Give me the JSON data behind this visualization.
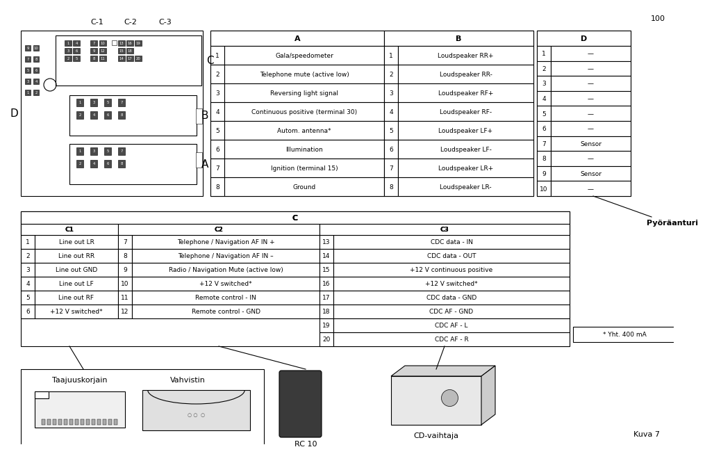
{
  "bg_color": "#ffffff",
  "page_num": "100",
  "connector_labels_C": [
    "C-1",
    "C-2",
    "C-3"
  ],
  "table_A_header": "A",
  "table_A_rows": [
    [
      "1",
      "Gala/speedometer"
    ],
    [
      "2",
      "Telephone mute (active low)"
    ],
    [
      "3",
      "Reversing light signal"
    ],
    [
      "4",
      "Continuous positive (terminal 30)"
    ],
    [
      "5",
      "Autom. antenna*"
    ],
    [
      "6",
      "Illumination"
    ],
    [
      "7",
      "Ignition (terminal 15)"
    ],
    [
      "8",
      "Ground"
    ]
  ],
  "table_B_header": "B",
  "table_B_rows": [
    [
      "1",
      "Loudspeaker RR+"
    ],
    [
      "2",
      "Loudspeaker RR-"
    ],
    [
      "3",
      "Loudspeaker RF+"
    ],
    [
      "4",
      "Loudspeaker RF-"
    ],
    [
      "5",
      "Loudspeaker LF+"
    ],
    [
      "6",
      "Loudspeaker LF-"
    ],
    [
      "7",
      "Loudspeaker LR+"
    ],
    [
      "8",
      "Loudspeaker LR-"
    ]
  ],
  "table_D_header": "D",
  "table_D_rows": [
    [
      "1",
      "—"
    ],
    [
      "2",
      "—"
    ],
    [
      "3",
      "—"
    ],
    [
      "4",
      "—"
    ],
    [
      "5",
      "—"
    ],
    [
      "6",
      "—"
    ],
    [
      "7",
      "Sensor"
    ],
    [
      "8",
      "—"
    ],
    [
      "9",
      "Sensor"
    ],
    [
      "10",
      "—"
    ]
  ],
  "pyoraanturi_label": "Pyöräanturi",
  "table_C_header": "C",
  "table_C1_header": "C1",
  "table_C2_header": "C2",
  "table_C3_header": "C3",
  "table_C1_rows": [
    [
      "1",
      "Line out LR"
    ],
    [
      "2",
      "Line out RR"
    ],
    [
      "3",
      "Line out GND"
    ],
    [
      "4",
      "Line out LF"
    ],
    [
      "5",
      "Line out RF"
    ],
    [
      "6",
      "+12 V switched*"
    ]
  ],
  "table_C2_rows": [
    [
      "7",
      "Telephone / Navigation AF IN +"
    ],
    [
      "8",
      "Telephone / Navigation AF IN –"
    ],
    [
      "9",
      "Radio / Navigation Mute (active low)"
    ],
    [
      "10",
      "+12 V switched*"
    ],
    [
      "11",
      "Remote control - IN"
    ],
    [
      "12",
      "Remote control - GND"
    ]
  ],
  "table_C3_rows": [
    [
      "13",
      "CDC data - IN"
    ],
    [
      "14",
      "CDC data - OUT"
    ],
    [
      "15",
      "+12 V continuous positive"
    ],
    [
      "16",
      "+12 V switched*"
    ],
    [
      "17",
      "CDC data - GND"
    ],
    [
      "18",
      "CDC AF - GND"
    ],
    [
      "19",
      "CDC AF - L"
    ],
    [
      "20",
      "CDC AF - R"
    ]
  ],
  "yht_label": "* Yht. 400 mA",
  "taajuuskorjain_label": "Taajuuskorjain",
  "vahvistin_label": "Vahvistin",
  "rc10_label": "RC 10",
  "cd_label": "CD-vaihtaja",
  "kuva_label": "Kuva 7"
}
